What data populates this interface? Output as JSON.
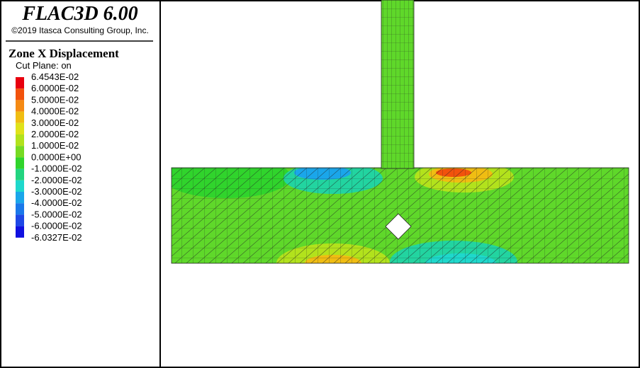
{
  "header": {
    "title": "FLAC3D 6.00",
    "copyright": "©2019 Itasca Consulting Group, Inc."
  },
  "legend": {
    "title": "Zone X Displacement",
    "subtitle": "Cut Plane: on",
    "labels": [
      "6.4543E-02",
      "6.0000E-02",
      "5.0000E-02",
      "4.0000E-02",
      "3.0000E-02",
      "2.0000E-02",
      "1.0000E-02",
      "0.0000E+00",
      "-1.0000E-02",
      "-2.0000E-02",
      "-3.0000E-02",
      "-4.0000E-02",
      "-5.0000E-02",
      "-6.0000E-02",
      "-6.0327E-02"
    ],
    "colors": [
      "#e8000e",
      "#f2520c",
      "#f58a14",
      "#f0bd12",
      "#e0e21a",
      "#b2e21c",
      "#76da22",
      "#30d42c",
      "#22d480",
      "#1ed8cc",
      "#1aa6ea",
      "#1a78ea",
      "#1e48e6",
      "#1010e0"
    ]
  }
}
